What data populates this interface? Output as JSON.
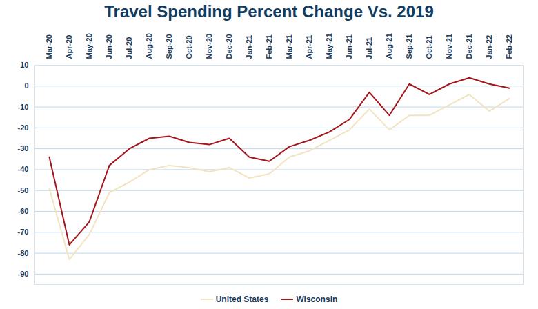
{
  "chart_data": {
    "type": "line",
    "title": "Travel Spending Percent Change Vs. 2019",
    "categories": [
      "Mar-20",
      "Apr-20",
      "May-20",
      "Jun-20",
      "Jul-20",
      "Aug-20",
      "Sep-20",
      "Oct-20",
      "Nov-20",
      "Dec-20",
      "Jan-21",
      "Feb-21",
      "Mar-21",
      "Apr-21",
      "May-21",
      "Jun-21",
      "Jul-21",
      "Aug-21",
      "Sep-21",
      "Oct-21",
      "Nov-21",
      "Dec-21",
      "Jan-22",
      "Feb-22"
    ],
    "series": [
      {
        "name": "United States",
        "color": "#f2e4c0",
        "values": [
          -49,
          -83,
          -71,
          -51,
          -46,
          -40,
          -38,
          -39,
          -41,
          -39,
          -44,
          -42,
          -34,
          -31,
          -26,
          -21,
          -11,
          -21,
          -14,
          -14,
          -9,
          -4,
          -12,
          -6
        ]
      },
      {
        "name": "Wisconsin",
        "color": "#a3161c",
        "values": [
          -34,
          -76,
          -65,
          -38,
          -30,
          -25,
          -24,
          -27,
          -28,
          -25,
          -34,
          -36,
          -29,
          -26,
          -22,
          -16,
          -3,
          -14,
          1,
          -4,
          1,
          4,
          1,
          -1
        ]
      }
    ],
    "ylim": [
      -95,
      10
    ],
    "yticks": [
      10,
      0,
      -10,
      -20,
      -30,
      -40,
      -50,
      -60,
      -70,
      -80,
      -90
    ],
    "grid": true,
    "legend": "bottom"
  }
}
